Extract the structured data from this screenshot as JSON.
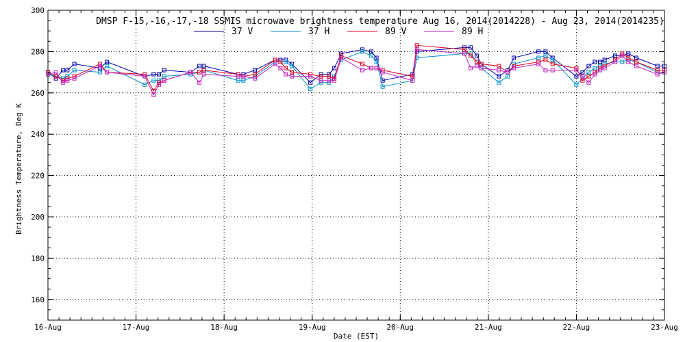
{
  "chart_data": {
    "type": "line",
    "title": "DMSP F-15,-16,-17,-18 SSMIS microwave brightness temperature Aug 16, 2014(2014228) - Aug 23, 2014(2014235)",
    "xlabel": "Date (EST)",
    "ylabel": "Brightness Temperature, Deg K",
    "xlim": [
      0,
      7
    ],
    "ylim": [
      150,
      300
    ],
    "yticks": [
      160,
      180,
      200,
      220,
      240,
      260,
      280,
      300
    ],
    "xticks": [
      0,
      1,
      2,
      3,
      4,
      5,
      6,
      7
    ],
    "xtick_labels": [
      "16-Aug",
      "17-Aug",
      "18-Aug",
      "19-Aug",
      "20-Aug",
      "21-Aug",
      "22-Aug",
      "23-Aug"
    ],
    "grid": true,
    "legend_position": "top",
    "series": [
      {
        "name": "37 V",
        "color": "#0000b0",
        "x": [
          0.0,
          0.09,
          0.17,
          0.22,
          0.3,
          0.59,
          0.67,
          1.1,
          1.2,
          1.26,
          1.32,
          1.62,
          1.72,
          1.77,
          2.16,
          2.22,
          2.35,
          2.58,
          2.64,
          2.7,
          2.77,
          2.98,
          3.1,
          3.19,
          3.25,
          3.33,
          3.57,
          3.67,
          3.73,
          3.8,
          4.14,
          4.19,
          4.73,
          4.8,
          4.87,
          4.92,
          5.12,
          5.22,
          5.29,
          5.57,
          5.65,
          5.73,
          6.0,
          6.07,
          6.14,
          6.21,
          6.27,
          6.32,
          6.44,
          6.52,
          6.59,
          6.68,
          6.92,
          7.0
        ],
        "values": [
          270,
          267,
          271,
          271,
          274,
          272,
          275,
          268,
          269,
          269,
          271,
          270,
          273,
          273,
          269,
          269,
          271,
          276,
          276,
          276,
          274,
          265,
          269,
          269,
          272,
          279,
          281,
          280,
          277,
          266,
          269,
          280,
          282,
          282,
          278,
          274,
          268,
          271,
          277,
          280,
          280,
          277,
          268,
          270,
          273,
          275,
          275,
          276,
          278,
          278,
          279,
          277,
          273,
          273
        ]
      },
      {
        "name": "37 H",
        "color": "#0090d0",
        "x": [
          0.0,
          0.09,
          0.17,
          0.22,
          0.3,
          0.59,
          0.67,
          1.1,
          1.2,
          1.26,
          1.32,
          1.62,
          1.72,
          1.77,
          2.16,
          2.22,
          2.35,
          2.58,
          2.64,
          2.7,
          2.77,
          2.98,
          3.1,
          3.19,
          3.25,
          3.33,
          3.57,
          3.67,
          3.73,
          3.8,
          4.14,
          4.19,
          4.73,
          4.8,
          4.87,
          4.92,
          5.12,
          5.22,
          5.29,
          5.57,
          5.65,
          5.73,
          6.0,
          6.07,
          6.14,
          6.21,
          6.27,
          6.32,
          6.44,
          6.52,
          6.59,
          6.68,
          6.92,
          7.0
        ],
        "values": [
          269,
          268,
          267,
          268,
          271,
          270,
          273,
          264,
          266,
          266,
          268,
          269,
          270,
          271,
          266,
          266,
          268,
          275,
          275,
          275,
          273,
          262,
          265,
          265,
          268,
          276,
          280,
          278,
          275,
          263,
          266,
          277,
          279,
          279,
          275,
          272,
          265,
          268,
          274,
          277,
          278,
          276,
          264,
          267,
          270,
          272,
          273,
          274,
          275,
          275,
          276,
          275,
          270,
          270
        ]
      },
      {
        "name": "89 V",
        "color": "#e00020",
        "x": [
          0.0,
          0.09,
          0.17,
          0.22,
          0.3,
          0.59,
          0.67,
          1.1,
          1.2,
          1.26,
          1.32,
          1.62,
          1.72,
          1.77,
          2.16,
          2.22,
          2.35,
          2.58,
          2.64,
          2.7,
          2.77,
          2.98,
          3.1,
          3.19,
          3.25,
          3.33,
          3.57,
          3.67,
          3.73,
          3.8,
          4.14,
          4.19,
          4.73,
          4.8,
          4.87,
          4.92,
          5.12,
          5.22,
          5.29,
          5.57,
          5.65,
          5.73,
          6.0,
          6.07,
          6.14,
          6.21,
          6.27,
          6.32,
          6.44,
          6.52,
          6.59,
          6.68,
          6.92,
          7.0
        ],
        "values": [
          270,
          268,
          266,
          267,
          268,
          274,
          270,
          269,
          261,
          265,
          266,
          270,
          270,
          271,
          269,
          268,
          269,
          276,
          275,
          272,
          270,
          269,
          268,
          268,
          267,
          278,
          274,
          272,
          272,
          271,
          268,
          283,
          281,
          278,
          275,
          274,
          273,
          270,
          273,
          275,
          276,
          274,
          272,
          266,
          268,
          270,
          272,
          273,
          276,
          279,
          277,
          275,
          271,
          271
        ]
      },
      {
        "name": "89 H",
        "color": "#c020c0",
        "x": [
          0.0,
          0.09,
          0.17,
          0.22,
          0.3,
          0.59,
          0.67,
          1.1,
          1.2,
          1.26,
          1.32,
          1.62,
          1.72,
          1.77,
          2.16,
          2.22,
          2.35,
          2.58,
          2.64,
          2.7,
          2.77,
          2.98,
          3.1,
          3.19,
          3.25,
          3.33,
          3.57,
          3.67,
          3.73,
          3.8,
          4.14,
          4.19,
          4.73,
          4.8,
          4.87,
          4.92,
          5.12,
          5.22,
          5.29,
          5.57,
          5.65,
          5.73,
          6.0,
          6.07,
          6.14,
          6.21,
          6.27,
          6.32,
          6.44,
          6.52,
          6.59,
          6.68,
          6.92,
          7.0
        ],
        "values": [
          269,
          270,
          265,
          266,
          267,
          273,
          270,
          268,
          259,
          264,
          266,
          270,
          265,
          269,
          268,
          268,
          267,
          274,
          272,
          269,
          268,
          268,
          266,
          266,
          266,
          277,
          271,
          272,
          272,
          270,
          266,
          281,
          279,
          272,
          273,
          272,
          271,
          270,
          272,
          274,
          271,
          271,
          271,
          268,
          265,
          269,
          271,
          272,
          275,
          278,
          275,
          273,
          269,
          270
        ]
      }
    ]
  }
}
